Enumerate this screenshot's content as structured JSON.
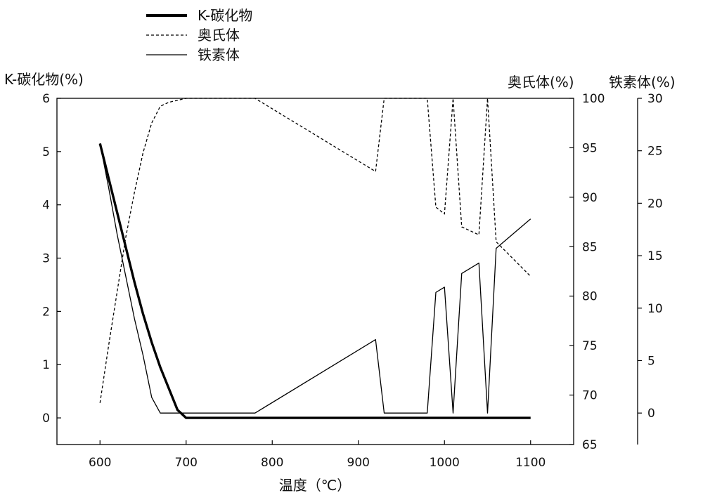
{
  "chart_data": {
    "type": "line",
    "xlabel": "温度（℃）",
    "x_ticks": [
      600,
      700,
      800,
      900,
      1000,
      1100
    ],
    "xlim": [
      550,
      1150
    ],
    "axes": {
      "left": {
        "label": "K-碳化物(%)",
        "ylim": [
          -0.5,
          6
        ],
        "ticks": [
          0,
          1,
          2,
          3,
          4,
          5,
          6
        ]
      },
      "right1": {
        "label": "奥氏体(%)",
        "ylim": [
          65,
          100
        ],
        "ticks": [
          65,
          70,
          75,
          80,
          85,
          90,
          95,
          100
        ]
      },
      "right2": {
        "label": "铁素体(%)",
        "ylim": [
          -3,
          30
        ],
        "ticks": [
          0,
          5,
          10,
          15,
          20,
          25,
          30
        ]
      }
    },
    "legend": {
      "position": "top-left"
    },
    "series": [
      {
        "name": "K-碳化物",
        "axis": "left",
        "style": "thick-solid",
        "x": [
          600,
          610,
          620,
          630,
          640,
          650,
          660,
          670,
          680,
          690,
          700,
          750,
          800,
          900,
          1000,
          1100
        ],
        "y": [
          5.15,
          4.5,
          3.85,
          3.2,
          2.55,
          1.95,
          1.42,
          0.95,
          0.55,
          0.15,
          0,
          0,
          0,
          0,
          0,
          0
        ]
      },
      {
        "name": "奥氏体",
        "axis": "right1",
        "style": "dashed",
        "x": [
          600,
          610,
          620,
          630,
          640,
          650,
          660,
          670,
          680,
          700,
          780,
          920,
          930,
          980,
          990,
          1000,
          1010,
          1020,
          1040,
          1050,
          1060,
          1100
        ],
        "y": [
          69.2,
          75.0,
          80.5,
          86.0,
          90.5,
          94.5,
          97.5,
          99.2,
          99.6,
          100,
          100,
          92.6,
          100,
          100,
          89.0,
          88.3,
          100,
          87.0,
          86.2,
          100,
          85.5,
          82.0
        ]
      },
      {
        "name": "铁素体",
        "axis": "right2",
        "style": "thin-solid",
        "x": [
          600,
          610,
          620,
          630,
          640,
          650,
          660,
          670,
          680,
          700,
          780,
          920,
          930,
          980,
          990,
          1000,
          1010,
          1020,
          1040,
          1050,
          1060,
          1100
        ],
        "y": [
          25.7,
          21.5,
          17.0,
          13.0,
          9.0,
          5.5,
          1.5,
          0,
          0,
          0,
          0,
          7.0,
          0,
          0,
          11.5,
          12.0,
          0,
          13.3,
          14.3,
          0,
          15.7,
          18.5
        ]
      }
    ]
  }
}
